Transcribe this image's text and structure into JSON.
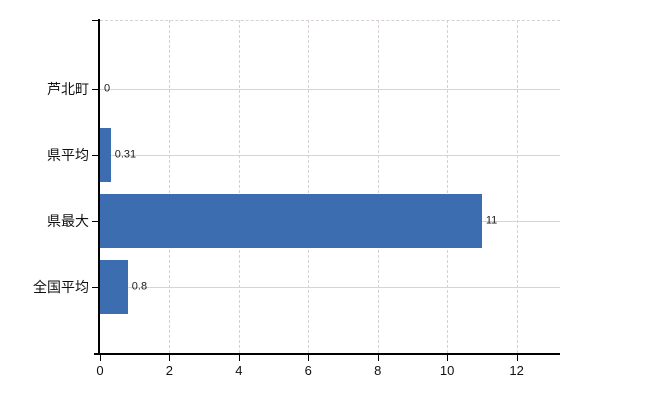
{
  "chart_data": {
    "type": "bar",
    "orientation": "horizontal",
    "title": "",
    "xlabel": "",
    "ylabel": "",
    "legend": null,
    "grid": "on",
    "categories": [
      "芦北町",
      "県平均",
      "県最大",
      "全国平均"
    ],
    "values": [
      0,
      0.31,
      11,
      0.8
    ],
    "value_labels": [
      "0",
      "0.31",
      "11",
      "0.8"
    ],
    "x_tick_values": [
      0,
      2,
      4,
      6,
      8,
      10,
      12
    ],
    "x_tick_labels": [
      "0",
      "2",
      "4",
      "6",
      "8",
      "10",
      "12"
    ],
    "xlim": [
      0,
      13.25
    ],
    "colors": {
      "bar": "#3c6db0",
      "grid_horizontal": "#d2d8d0",
      "grid_vertical": "#d6d0d6",
      "axis": "#000000",
      "text": "#111111",
      "background": "#ffffff"
    }
  }
}
